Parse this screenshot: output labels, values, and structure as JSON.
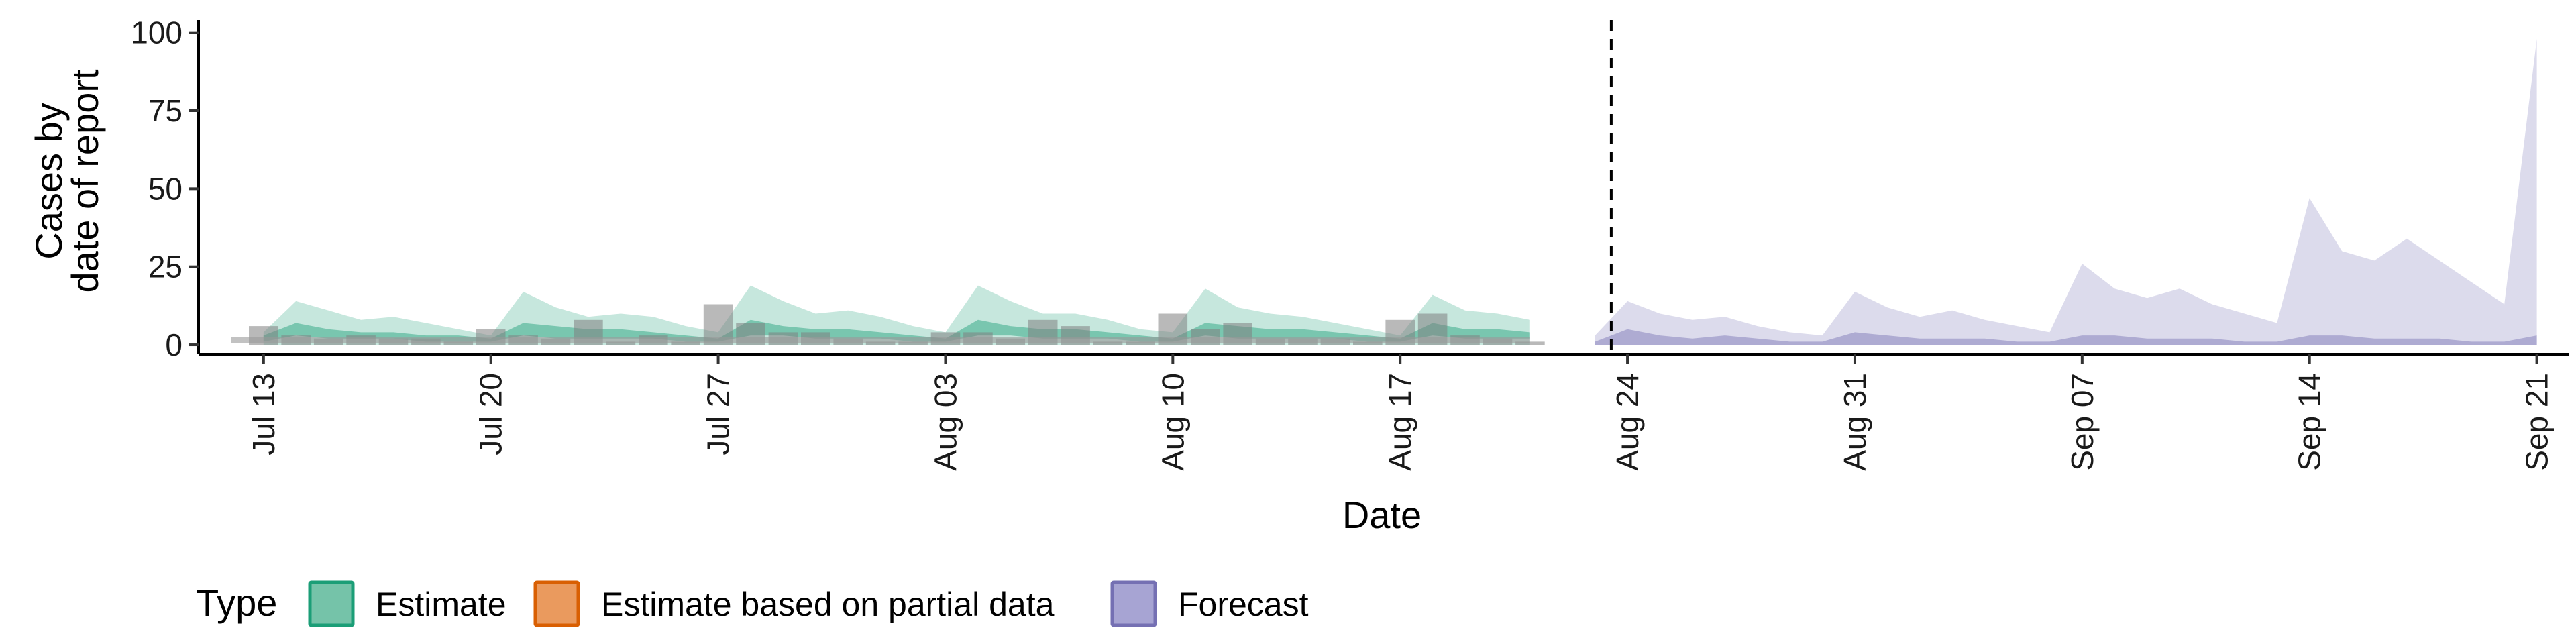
{
  "chart_data": {
    "type": "area",
    "title": "",
    "xlabel": "Date",
    "ylabel": [
      "Cases by",
      "date of report"
    ],
    "y_ticks": [
      0,
      25,
      50,
      75,
      100
    ],
    "ylim": [
      -3,
      101
    ],
    "x_ticks": [
      "Jul 13",
      "Jul 20",
      "Jul 27",
      "Aug 03",
      "Aug 10",
      "Aug 17",
      "Aug 24",
      "Aug 31",
      "Sep 07",
      "Sep 14",
      "Sep 21"
    ],
    "xlim_days": [
      -2,
      71
    ],
    "divider_day": 41.5,
    "date_origin": "Jul 13",
    "grid": false,
    "reported_cases": [
      {
        "x": 0,
        "y": 6
      },
      {
        "x": 1,
        "y": 3
      },
      {
        "x": 2,
        "y": 2
      },
      {
        "x": 3,
        "y": 3
      },
      {
        "x": 4,
        "y": 2
      },
      {
        "x": 5,
        "y": 2
      },
      {
        "x": 6,
        "y": 1
      },
      {
        "x": 7,
        "y": 5
      },
      {
        "x": 8,
        "y": 3
      },
      {
        "x": 9,
        "y": 2
      },
      {
        "x": 10,
        "y": 8
      },
      {
        "x": 11,
        "y": 1
      },
      {
        "x": 12,
        "y": 3
      },
      {
        "x": 13,
        "y": 1
      },
      {
        "x": 14,
        "y": 13
      },
      {
        "x": 15,
        "y": 7
      },
      {
        "x": 16,
        "y": 4
      },
      {
        "x": 17,
        "y": 4
      },
      {
        "x": 18,
        "y": 2
      },
      {
        "x": 19,
        "y": 1
      },
      {
        "x": 20,
        "y": 1
      },
      {
        "x": 21,
        "y": 4
      },
      {
        "x": 22,
        "y": 4
      },
      {
        "x": 23,
        "y": 2
      },
      {
        "x": 24,
        "y": 8
      },
      {
        "x": 25,
        "y": 6
      },
      {
        "x": 26,
        "y": 1
      },
      {
        "x": 27,
        "y": 1
      },
      {
        "x": 28,
        "y": 10
      },
      {
        "x": 29,
        "y": 5
      },
      {
        "x": 30,
        "y": 7
      },
      {
        "x": 31,
        "y": 2
      },
      {
        "x": 32,
        "y": 2
      },
      {
        "x": 33,
        "y": 2
      },
      {
        "x": 34,
        "y": 1
      },
      {
        "x": 35,
        "y": 8
      },
      {
        "x": 36,
        "y": 10
      },
      {
        "x": 37,
        "y": 3
      },
      {
        "x": 38,
        "y": 2
      },
      {
        "x": 39,
        "y": 1
      }
    ],
    "series": [
      {
        "name": "Estimate",
        "color": "#1B9E77",
        "x": [
          0,
          1,
          2,
          3,
          4,
          5,
          6,
          7,
          8,
          9,
          10,
          11,
          12,
          13,
          14,
          15,
          16,
          17,
          18,
          19,
          20,
          21,
          22,
          23,
          24,
          25,
          26,
          27,
          28,
          29,
          30,
          31,
          32,
          33,
          34,
          35,
          36,
          37,
          38,
          39
        ],
        "upper": [
          4,
          14,
          11,
          8,
          9,
          7,
          5,
          3,
          17,
          12,
          9,
          10,
          9,
          6,
          4,
          19,
          14,
          10,
          11,
          9,
          6,
          4,
          19,
          14,
          10,
          10,
          8,
          5,
          4,
          18,
          12,
          10,
          9,
          7,
          5,
          3,
          16,
          11,
          10,
          8
        ],
        "upper_start": [
          -1,
          3
        ],
        "inner_upper": [
          3,
          7,
          5,
          4,
          4,
          3,
          3,
          2,
          7,
          6,
          5,
          5,
          4,
          3,
          2,
          8,
          6,
          5,
          5,
          4,
          3,
          2,
          8,
          6,
          5,
          5,
          4,
          3,
          2,
          7,
          6,
          5,
          5,
          4,
          3,
          2,
          7,
          5,
          5,
          4
        ],
        "inner_lower": [
          1,
          3,
          2,
          2,
          2,
          1,
          1,
          1,
          3,
          2,
          2,
          2,
          2,
          1,
          1,
          3,
          3,
          2,
          2,
          2,
          1,
          1,
          3,
          3,
          2,
          2,
          2,
          1,
          1,
          3,
          2,
          2,
          2,
          2,
          1,
          1,
          3,
          2,
          2,
          2
        ],
        "lower": [
          0,
          0,
          0,
          0,
          0,
          0,
          0,
          0,
          0,
          0,
          0,
          0,
          0,
          0,
          0,
          0,
          0,
          0,
          0,
          0,
          0,
          0,
          0,
          0,
          0,
          0,
          0,
          0,
          0,
          0,
          0,
          0,
          0,
          0,
          0,
          0,
          0,
          0,
          0,
          0
        ],
        "median": [
          2,
          4,
          3,
          3,
          3,
          2,
          2,
          1,
          4,
          3,
          3,
          3,
          3,
          2,
          1,
          5,
          4,
          3,
          3,
          3,
          2,
          1,
          5,
          4,
          3,
          3,
          3,
          2,
          1,
          4,
          3,
          3,
          3,
          2,
          2,
          1,
          4,
          3,
          3,
          3
        ]
      },
      {
        "name": "Estimate based on partial data",
        "color": "#D95F02",
        "x": [],
        "upper": [],
        "lower": []
      },
      {
        "name": "Forecast",
        "color": "#7570B3",
        "x": [
          41,
          42,
          43,
          44,
          45,
          46,
          47,
          48,
          49,
          50,
          51,
          52,
          53,
          54,
          55,
          56,
          57,
          58,
          59,
          60,
          61,
          62,
          63,
          64,
          65,
          66,
          67,
          68,
          69,
          70
        ],
        "upper": [
          3,
          14,
          10,
          8,
          9,
          6,
          4,
          3,
          17,
          12,
          9,
          11,
          8,
          6,
          4,
          26,
          18,
          15,
          18,
          13,
          10,
          7,
          47,
          30,
          27,
          34,
          27,
          20,
          13,
          98
        ],
        "inner_upper": [
          1,
          5,
          3,
          2,
          3,
          2,
          1,
          1,
          4,
          3,
          2,
          2,
          2,
          1,
          1,
          3,
          3,
          2,
          2,
          2,
          1,
          1,
          3,
          3,
          2,
          2,
          2,
          1,
          1,
          3
        ],
        "lower": [
          0,
          0,
          0,
          0,
          0,
          0,
          0,
          0,
          0,
          0,
          0,
          0,
          0,
          0,
          0,
          0,
          0,
          0,
          0,
          0,
          0,
          0,
          0,
          0,
          0,
          0,
          0,
          0,
          0,
          0
        ]
      }
    ],
    "legend": {
      "position": "bottom",
      "title": "Type",
      "entries": [
        {
          "label": "Estimate",
          "fill": "#75C3A9",
          "border": "#1B9E77"
        },
        {
          "label": "Estimate based on partial data",
          "fill": "#EA9A5E",
          "border": "#D95F02"
        },
        {
          "label": "Forecast",
          "fill": "#A7A4D3",
          "border": "#7570B3"
        }
      ]
    }
  }
}
